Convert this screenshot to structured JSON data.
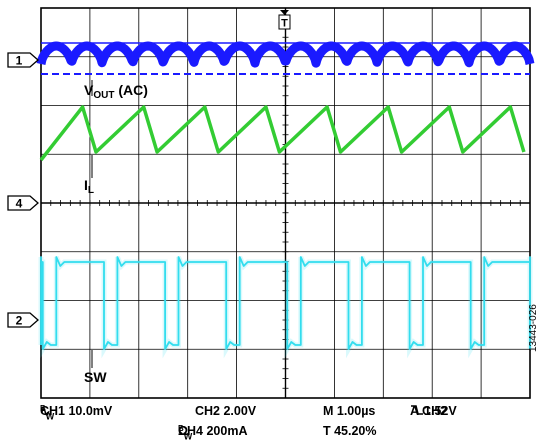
{
  "chart_data": {
    "type": "line",
    "title": "",
    "grid": true,
    "divisions": {
      "x": 10,
      "y": 8
    },
    "trigger_marker": "T",
    "channel_markers": [
      "1",
      "4",
      "2"
    ],
    "series": [
      {
        "name": "VOUT (AC)",
        "label_main": "V",
        "label_sub": "OUT",
        "label_tail": " (AC)",
        "color": "#1a1aff",
        "shape": "ripple",
        "periods": 16
      },
      {
        "name": "IL",
        "label_main": "I",
        "label_sub": "L",
        "label_tail": "",
        "color": "#33cc33",
        "shape": "triangle",
        "periods": 8
      },
      {
        "name": "SW",
        "label_main": "SW",
        "label_sub": "",
        "label_tail": "",
        "color": "#33ddee",
        "shape": "square",
        "periods": 8
      }
    ],
    "settings": {
      "ch1": "CH1  10.0mV",
      "ch1_bw": "W",
      "ch2": "CH2   2.00V",
      "ch4": "CH4  200mA",
      "ch4_bw": "W",
      "timebase": "M 1.00µs",
      "trigger": "A  CH2",
      "trigger_level": "1.52V",
      "trigger_pos": "T  45.20%"
    },
    "figure_id": "13443-026"
  }
}
